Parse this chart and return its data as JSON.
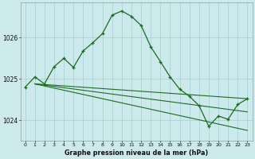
{
  "title": "Graphe pression niveau de la mer (hPa)",
  "bg_color": "#cce9ec",
  "grid_color": "#aad4d8",
  "line_color": "#1e6b1e",
  "xlim": [
    -0.5,
    23.5
  ],
  "ylim": [
    1023.5,
    1026.85
  ],
  "yticks": [
    1024,
    1025,
    1026
  ],
  "xticks": [
    0,
    1,
    2,
    3,
    4,
    5,
    6,
    7,
    8,
    9,
    10,
    11,
    12,
    13,
    14,
    15,
    16,
    17,
    18,
    19,
    20,
    21,
    22,
    23
  ],
  "series": [
    {
      "x": [
        0,
        1,
        2,
        3,
        4,
        5,
        6,
        7,
        8,
        9,
        10,
        11,
        12,
        13,
        14,
        15,
        16,
        17,
        18,
        19,
        20,
        21,
        22,
        23
      ],
      "y": [
        1024.8,
        1025.05,
        1024.88,
        1025.3,
        1025.5,
        1025.28,
        1025.68,
        1025.88,
        1026.1,
        1026.55,
        1026.65,
        1026.52,
        1026.3,
        1025.78,
        1025.42,
        1025.05,
        1024.75,
        1024.58,
        1024.35,
        1023.85,
        1024.1,
        1024.02,
        1024.38,
        1024.52
      ],
      "marker": "+"
    },
    {
      "x": [
        1,
        23
      ],
      "y": [
        1024.88,
        1024.52
      ],
      "marker": null
    },
    {
      "x": [
        1,
        23
      ],
      "y": [
        1024.88,
        1024.2
      ],
      "marker": null
    },
    {
      "x": [
        1,
        23
      ],
      "y": [
        1024.88,
        1023.75
      ],
      "marker": null
    }
  ]
}
